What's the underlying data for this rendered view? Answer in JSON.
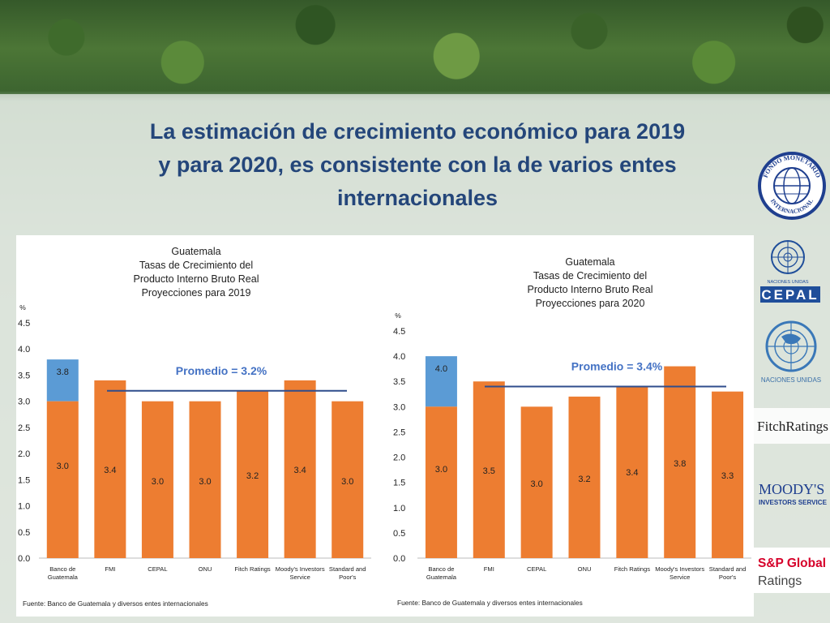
{
  "slide": {
    "title_line1": "La estimación de crecimiento económico para 2019",
    "title_line2": "y para 2020, es consistente con la de varios entes",
    "title_line3": "internacionales"
  },
  "colors": {
    "title": "#24467a",
    "orange": "#ed7d31",
    "blue": "#5b9bd5",
    "avg_line": "#2f4d8c",
    "avg_text": "#4472c4"
  },
  "chart_data": [
    {
      "type": "bar",
      "title_lines": [
        "Guatemala",
        "Tasas de Crecimiento del",
        "Producto Interno Bruto Real",
        "Proyecciones para 2019"
      ],
      "ylabel": "%",
      "ylim": [
        0,
        4.5
      ],
      "yticks": [
        "4.5",
        "4.0",
        "3.5",
        "3.0",
        "2.5",
        "2.0",
        "1.5",
        "1.0",
        "0.5",
        "0.0"
      ],
      "categories": [
        [
          "Banco de",
          "Guatemala"
        ],
        [
          "FMI"
        ],
        [
          "CEPAL"
        ],
        [
          "ONU"
        ],
        [
          "Fitch Ratings"
        ],
        [
          "Moody's Investors",
          "Service"
        ],
        [
          "Standard and",
          "Poor's"
        ]
      ],
      "values": [
        3.0,
        3.4,
        3.0,
        3.0,
        3.2,
        3.4,
        3.0
      ],
      "value_labels": [
        "3.0",
        "3.4",
        "3.0",
        "3.0",
        "3.2",
        "3.4",
        "3.0"
      ],
      "upper_range": {
        "index": 0,
        "value": 3.8,
        "label": "3.8"
      },
      "average": 3.2,
      "average_label": "Promedio = 3.2%",
      "source": "Fuente: Banco de Guatemala y diversos entes internacionales"
    },
    {
      "type": "bar",
      "title_lines": [
        "Guatemala",
        "Tasas de Crecimiento del",
        "Producto Interno Bruto Real",
        "Proyecciones para 2020"
      ],
      "ylabel": "%",
      "ylim": [
        0,
        4.5
      ],
      "yticks": [
        "4.5",
        "4.0",
        "3.5",
        "3.0",
        "2.5",
        "2.0",
        "1.5",
        "1.0",
        "0.5",
        "0.0"
      ],
      "categories": [
        [
          "Banco de",
          "Guatemala"
        ],
        [
          "FMI"
        ],
        [
          "CEPAL"
        ],
        [
          "ONU"
        ],
        [
          "Fitch Ratings"
        ],
        [
          "Moody's Investors",
          "Service"
        ],
        [
          "Standard and",
          "Poor's"
        ]
      ],
      "values": [
        3.0,
        3.5,
        3.0,
        3.2,
        3.4,
        3.8,
        3.3
      ],
      "value_labels": [
        "3.0",
        "3.5",
        "3.0",
        "3.2",
        "3.4",
        "3.8",
        "3.3"
      ],
      "upper_range": {
        "index": 0,
        "value": 4.0,
        "label": "4.0"
      },
      "average": 3.4,
      "average_label": "Promedio = 3.4%",
      "source": "Fuente: Banco de Guatemala y diversos entes internacionales"
    }
  ],
  "logos": {
    "imf_top": "FONDO MONETARIO",
    "imf_bottom": "INTERNACIONAL",
    "un_cepal_sub": "NACIONES UNIDAS",
    "cepal": "CEPAL",
    "un_label": "NACIONES UNIDAS",
    "fitch": "FitchRatings",
    "moodys": "MOODY'S",
    "moodys_sub": "INVESTORS SERVICE",
    "sp": "S&P Global",
    "sp_sub": "Ratings",
    "icons": [
      "imf-seal-icon",
      "un-emblem-icon",
      "un-emblem-icon"
    ]
  }
}
